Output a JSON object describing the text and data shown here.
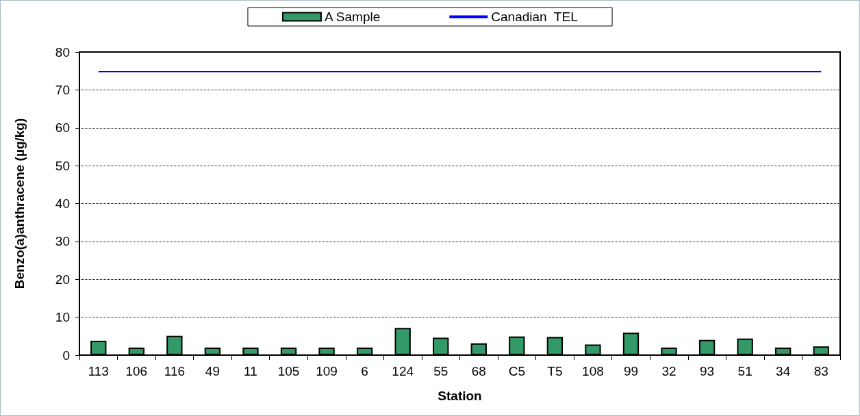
{
  "chart_data": {
    "type": "bar",
    "xlabel": "Station",
    "ylabel": "Benzo(a)anthracene (µg/kg)",
    "categories": [
      "113",
      "106",
      "116",
      "49",
      "11",
      "105",
      "109",
      "6",
      "124",
      "55",
      "68",
      "C5",
      "T5",
      "108",
      "99",
      "32",
      "93",
      "51",
      "34",
      "83"
    ],
    "series": [
      {
        "name": "A Sample",
        "color": "#339966",
        "values": [
          3.8,
          2.0,
          5.1,
          2.0,
          2.0,
          2.0,
          2.0,
          2.0,
          7.2,
          4.6,
          3.1,
          4.9,
          4.8,
          2.8,
          5.9,
          2.0,
          4.0,
          4.4,
          2.0,
          2.3
        ]
      },
      {
        "name": "Canadian  TEL",
        "type": "line",
        "color": "#0000ff",
        "values": [
          74.8,
          74.8,
          74.8,
          74.8,
          74.8,
          74.8,
          74.8,
          74.8,
          74.8,
          74.8,
          74.8,
          74.8,
          74.8,
          74.8,
          74.8,
          74.8,
          74.8,
          74.8,
          74.8,
          74.8
        ]
      }
    ],
    "ylim": [
      0,
      80
    ],
    "yticks": [
      0,
      10,
      20,
      30,
      40,
      50,
      60,
      70,
      80
    ],
    "grid": "y",
    "legend": "top",
    "marker": "none"
  }
}
